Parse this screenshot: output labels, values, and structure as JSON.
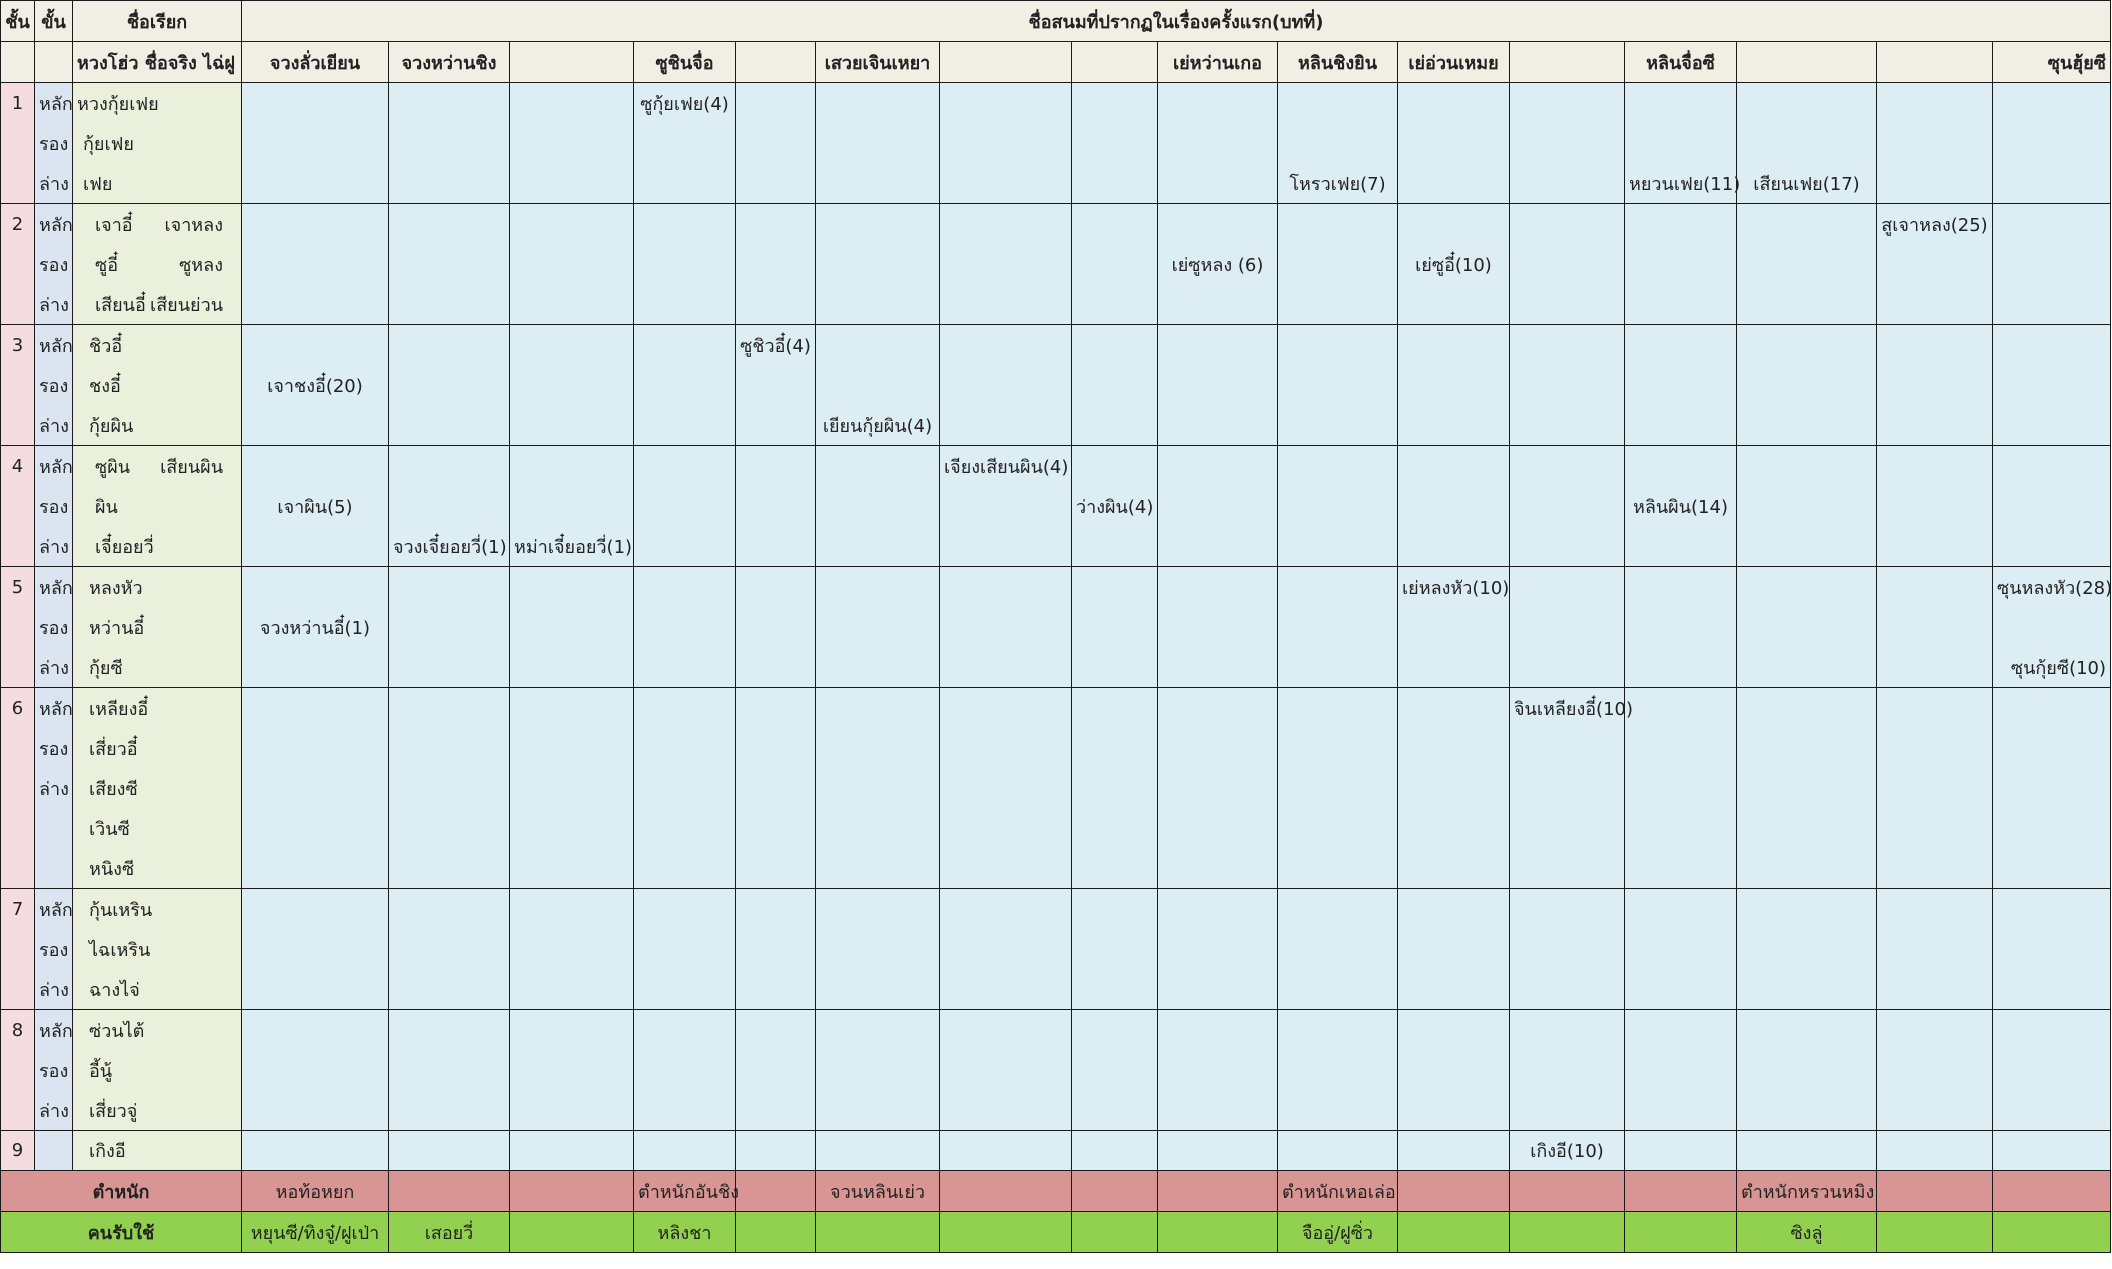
{
  "header": {
    "rank": "ชั้น",
    "step": "ขั้น",
    "title_name": "ชื่อเรียก",
    "concubine_title": "ชื่อสนมที่ปรากฏในเรื่องครั้งแรก(บทที่)",
    "realname": "หวงโฮ่ว ชื่อจริง ไฉ่ฝู",
    "persons": [
      "จวงลั่วเยียน",
      "จวงหว่านชิง",
      "",
      "ซูชินจื่อ",
      "",
      "เสวยเจินเหยา",
      "",
      "",
      "เย่หว่านเกอ",
      "หลินชิงยิน",
      "เย่อ่วนเหมย",
      "",
      "หลินจื่อซี",
      "",
      "",
      "ซุนฮุ้ยซี"
    ]
  },
  "steps": {
    "main": "หลัก",
    "second": "รอง",
    "low": "ล่าง"
  },
  "ranks": {
    "r1": {
      "num": "1",
      "names": [
        "หวงกุ้ยเฟย",
        "กุ้ยเฟย",
        "เฟย"
      ]
    },
    "r2": {
      "num": "2",
      "names_a": [
        "เจาอี๋",
        "ซูอี๋",
        "เสียนอี๋"
      ],
      "names_b": [
        "เจาหลง",
        "ซูหลง",
        "เสียนย่วน"
      ]
    },
    "r3": {
      "num": "3",
      "names": [
        "ชิวอี๋",
        "ชงอี๋",
        "กุ้ยผิน"
      ]
    },
    "r4": {
      "num": "4",
      "names_a": [
        "ซูผิน",
        "ผิน",
        "เจี๋ยอยวี่"
      ],
      "name_b": "เสียนผิน"
    },
    "r5": {
      "num": "5",
      "names": [
        "หลงหัว",
        "หว่านอี๋",
        "กุ้ยซี"
      ]
    },
    "r6": {
      "num": "6",
      "names": [
        "เหลียงอี๋",
        "เสี่ยวอี๋",
        "เสียงซี",
        "เวินซี",
        "หนิงซี"
      ]
    },
    "r7": {
      "num": "7",
      "names": [
        "กุ้นเหริน",
        "ไฉเหริน",
        "ฉางไจ่"
      ]
    },
    "r8": {
      "num": "8",
      "names": [
        "ซ่วนไต้",
        "อี้นู้",
        "เสี่ยวจู่"
      ]
    },
    "r9": {
      "num": "9",
      "names": [
        "เกิงอี"
      ]
    }
  },
  "entries": {
    "r1a_c3": "ซูกุ้ยเฟย(4)",
    "r1c_c9": "โหรวเฟย(7)",
    "r1c_c12": "หยวนเฟย(11)",
    "r1c_c13": "เสียนเฟย(17)",
    "r2a_c14": "สูเจาหลง(25)",
    "r2b_c8": "เย่ซูหลง (6)",
    "r2b_c10": "เย่ซูอี๋(10)",
    "r3a_c4": "ซูชิวอี๋(4)",
    "r3b_c0": "เจาชงอี๋(20)",
    "r3c_c5": "เยียนกุ้ยผิน(4)",
    "r4a_c6": "เจียงเสียนผิน(4)",
    "r4b_c0": "เจาผิน(5)",
    "r4b_c7": "ว่างผิน(4)",
    "r4b_c12": "หลินผิน(14)",
    "r4c_c1": "จวงเจี๋ยอยวี่(1)",
    "r4c_c2": "หม่าเจี๋ยอยวี่(1)",
    "r5a_c10": "เย่หลงหัว(10)",
    "r5a_c15": "ซุนหลงหัว(28)",
    "r5b_c0": "จวงหว่านอี๋(1)",
    "r5c_c15": "ซุนกุ้ยซี(10)",
    "r6a_c11": "จินเหลียงอี๋(10)",
    "r9_c11": "เกิงอี(10)"
  },
  "sect": {
    "label": "ตำหนัก",
    "cells": [
      "หอท้อหยก",
      "",
      "",
      "ตำหนักอันชิง",
      "",
      "จวนหลินเย่ว",
      "",
      "",
      "",
      "ตำหนักเหอเล่อ",
      "",
      "",
      "",
      "ตำหนักหรวนหมิง",
      "",
      ""
    ]
  },
  "servants": {
    "label": "คนรับใช้",
    "cells": [
      "หยุนซี/ทิงจู๋/ฝูเป่า",
      "เสอยวี่",
      "",
      "หลิงชา",
      "",
      "",
      "",
      "",
      "",
      "จืออู่/ฝูซิ่ว",
      "",
      "",
      "",
      "ซิงลู่",
      "",
      ""
    ]
  },
  "colors": {
    "rank": "#f5dce1",
    "step": "#dbe5f1",
    "name": "#ebf0dc",
    "data": "#dcedf4",
    "sect": "#d89593",
    "servants": "#92d050",
    "header": "#f1efe3"
  }
}
